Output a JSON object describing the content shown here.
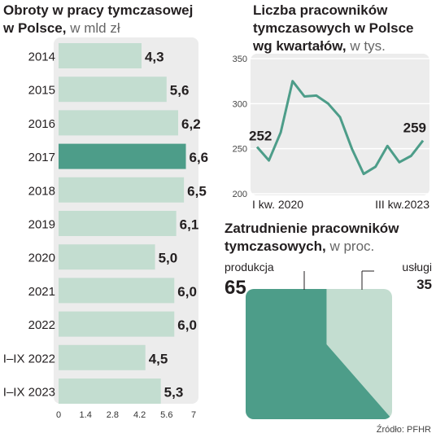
{
  "chart_data": [
    {
      "type": "bar",
      "title_line1": "Obroty w pracy tymczasowej",
      "title_line2": "w Polsce,",
      "unit": "w mld zł",
      "categories": [
        "2014",
        "2015",
        "2016",
        "2017",
        "2018",
        "2019",
        "2020",
        "2021",
        "2022",
        "I–IX 2022",
        "I–IX 2023"
      ],
      "values": [
        4.3,
        5.6,
        6.2,
        6.6,
        6.5,
        6.1,
        5.0,
        6.0,
        6.0,
        4.5,
        5.3
      ],
      "value_labels": [
        "4,3",
        "5,6",
        "6,2",
        "6,6",
        "6,5",
        "6,1",
        "5,0",
        "6,0",
        "6,0",
        "4,5",
        "5,3"
      ],
      "highlight_index": 3,
      "xlim": [
        0,
        7
      ],
      "xticks": [
        "0",
        "1.4",
        "2.8",
        "4.2",
        "5.6",
        "7"
      ],
      "colors": {
        "bar": "#c3ddd0",
        "highlight": "#4d9d89",
        "panel": "#ececec"
      }
    },
    {
      "type": "line",
      "title_line1": "Liczba pracowników",
      "title_line2": "tymczasowych w Polsce",
      "title_line3": "wg kwartałów,",
      "unit": "w tys.",
      "x": [
        1,
        2,
        3,
        4,
        5,
        6,
        7,
        8,
        9,
        10,
        11,
        12,
        13,
        14,
        15
      ],
      "values": [
        252,
        237,
        268,
        325,
        308,
        309,
        300,
        285,
        250,
        222,
        230,
        253,
        235,
        242,
        259
      ],
      "ylim": [
        200,
        350
      ],
      "yticks": [
        "350",
        "300",
        "250",
        "200"
      ],
      "ytick_values": [
        350,
        300,
        250,
        200
      ],
      "start_label": "252",
      "end_label": "259",
      "x_start_label": "I kw. 2020",
      "x_end_label": "III kw.2023",
      "colors": {
        "line": "#4d9d89",
        "panel": "#ececec",
        "grid": "#ffffff"
      }
    },
    {
      "type": "pie",
      "title_line1": "Zatrudnienie pracowników",
      "title_line2": "tymczasowych,",
      "unit": "w proc.",
      "slices": [
        {
          "label": "produkcja",
          "value": 65,
          "value_label": "65"
        },
        {
          "label": "usługi",
          "value": 35,
          "value_label": "35"
        }
      ],
      "colors": {
        "produkcja": "#4d9d89",
        "uslugi": "#c3ddd0"
      }
    }
  ],
  "source": "Źródło: PFHR"
}
